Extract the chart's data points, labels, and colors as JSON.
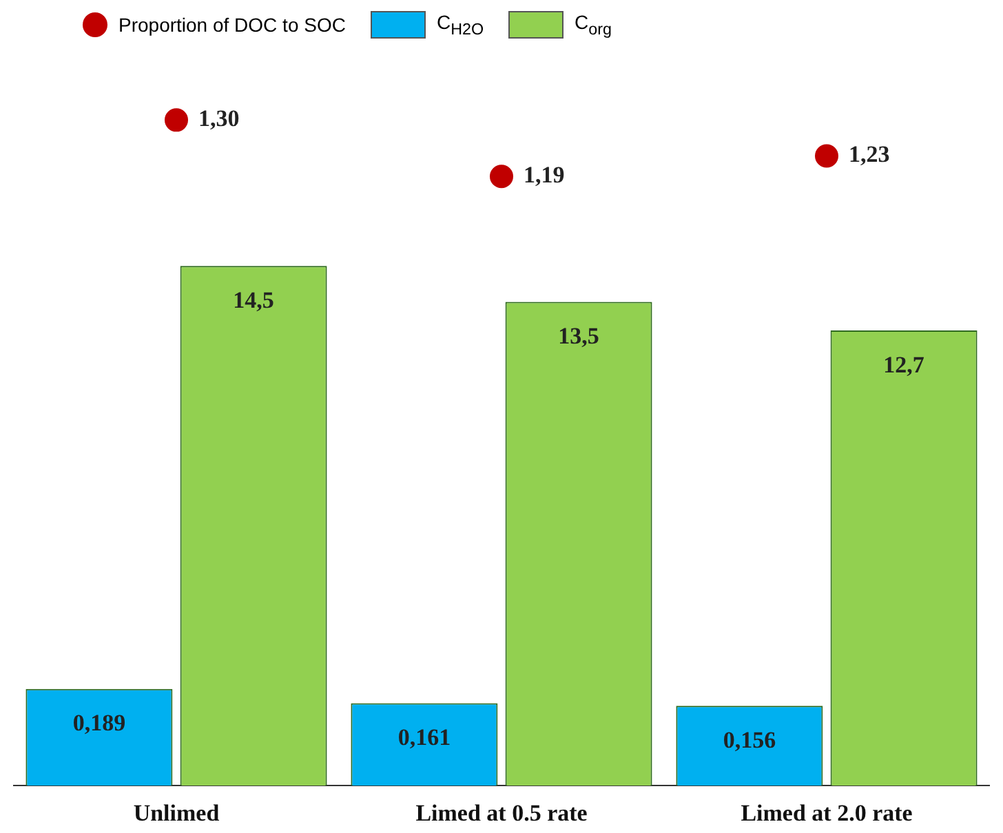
{
  "chart_data": {
    "type": "bar",
    "categories": [
      "Unlimed",
      "Limed at 0.5 rate",
      "Limed at 2.0 rate"
    ],
    "legend": "top left",
    "tick_labels": "x",
    "series": [
      {
        "name": "Proportion of DOC to SOC",
        "type": "scatter",
        "marker": "circle",
        "color": "#c00000",
        "x": [
          "Unlimed",
          "Limed at 0.5 rate",
          "Limed at 2.0 rate"
        ],
        "values": [
          1.3,
          1.19,
          1.23
        ],
        "value_labels": [
          "1,30",
          "1,19",
          "1,23"
        ]
      },
      {
        "name": "C$_{H2O}$",
        "axis": "y",
        "color": "#00b0f0",
        "values": [
          0.189,
          0.161,
          0.156
        ],
        "value_labels": [
          "0,189",
          "0,161",
          "0,156"
        ]
      },
      {
        "name": "C$_{org}$",
        "axis": "y2",
        "color": "#92d050",
        "values": [
          14.5,
          13.5,
          12.7
        ],
        "value_labels": [
          "14,5",
          "13,5",
          "12,7"
        ]
      }
    ]
  }
}
